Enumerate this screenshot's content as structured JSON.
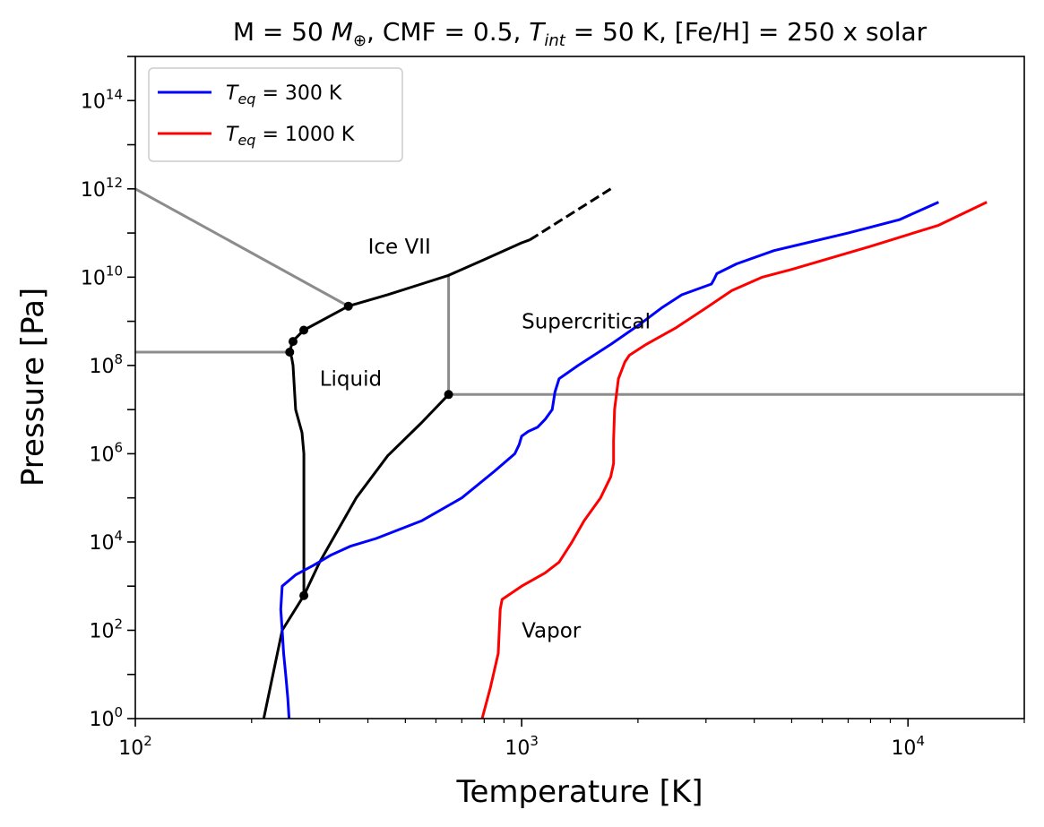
{
  "chart_data": {
    "type": "line",
    "title": {
      "prefix": "M = 50 ",
      "m_sym": "M",
      "m_sub": "⊕",
      "mid1": ", CMF = 0.5, ",
      "t_sym": "T",
      "t_sub": "int",
      "mid2": " = 50 K, [Fe/H] = 250 x solar"
    },
    "xlabel": "Temperature [K]",
    "ylabel": "Pressure [Pa]",
    "xscale": "log",
    "yscale": "log",
    "xlim": [
      100,
      20000
    ],
    "ylim": [
      1,
      1000000000000000.0
    ],
    "grid": false,
    "legend_position": "upper-left",
    "x_ticks": [
      {
        "value": 100,
        "base": "10",
        "exp": "2"
      },
      {
        "value": 1000,
        "base": "10",
        "exp": "3"
      },
      {
        "value": 10000,
        "base": "10",
        "exp": "4"
      }
    ],
    "y_ticks": [
      {
        "value": 1,
        "base": "10",
        "exp": "0"
      },
      {
        "value": 100,
        "base": "10",
        "exp": "2"
      },
      {
        "value": 10000,
        "base": "10",
        "exp": "4"
      },
      {
        "value": 1000000,
        "base": "10",
        "exp": "6"
      },
      {
        "value": 100000000,
        "base": "10",
        "exp": "8"
      },
      {
        "value": 10000000000,
        "base": "10",
        "exp": "10"
      },
      {
        "value": 1000000000000,
        "base": "10",
        "exp": "12"
      },
      {
        "value": 100000000000000,
        "base": "10",
        "exp": "14"
      }
    ],
    "series": [
      {
        "name": "T_eq = 300 K",
        "legend": {
          "sym": "T",
          "sub": "eq",
          "rest": " = 300 K"
        },
        "color": "#0000ff",
        "points": [
          [
            250,
            1
          ],
          [
            248,
            3
          ],
          [
            245,
            10
          ],
          [
            242,
            30
          ],
          [
            240,
            100
          ],
          [
            238,
            300
          ],
          [
            240,
            1000
          ],
          [
            260,
            1800
          ],
          [
            290,
            3000
          ],
          [
            320,
            5000
          ],
          [
            360,
            8000
          ],
          [
            420,
            12000
          ],
          [
            550,
            30000
          ],
          [
            700,
            100000
          ],
          [
            850,
            400000
          ],
          [
            960,
            1000000
          ],
          [
            985,
            1600000
          ],
          [
            1000,
            2500000
          ],
          [
            1040,
            3200000
          ],
          [
            1100,
            4000000
          ],
          [
            1150,
            6000000
          ],
          [
            1200,
            10000000
          ],
          [
            1220,
            25000000
          ],
          [
            1250,
            50000000
          ],
          [
            1400,
            100000000
          ],
          [
            1700,
            300000000
          ],
          [
            2000,
            800000000
          ],
          [
            2300,
            2000000000
          ],
          [
            2600,
            4000000000
          ],
          [
            3100,
            7000000000
          ],
          [
            3150,
            9000000000
          ],
          [
            3200,
            12000000000
          ],
          [
            3600,
            20000000000
          ],
          [
            4500,
            40000000000
          ],
          [
            7000,
            100000000000
          ],
          [
            9500,
            200000000000
          ],
          [
            12000,
            500000000000
          ]
        ]
      },
      {
        "name": "T_eq = 1000 K",
        "legend": {
          "sym": "T",
          "sub": "eq",
          "rest": " = 1000 K"
        },
        "color": "#ff0000",
        "points": [
          [
            790,
            1
          ],
          [
            830,
            5
          ],
          [
            870,
            30
          ],
          [
            880,
            300
          ],
          [
            890,
            500
          ],
          [
            1000,
            1000
          ],
          [
            1150,
            2000
          ],
          [
            1250,
            3500
          ],
          [
            1350,
            10000
          ],
          [
            1450,
            30000
          ],
          [
            1600,
            100000
          ],
          [
            1700,
            300000
          ],
          [
            1730,
            600000
          ],
          [
            1730,
            2000000
          ],
          [
            1740,
            10000000
          ],
          [
            1780,
            50000000
          ],
          [
            1850,
            120000000
          ],
          [
            1900,
            170000000
          ],
          [
            2100,
            300000000
          ],
          [
            2500,
            700000000
          ],
          [
            3000,
            2000000000
          ],
          [
            3500,
            5000000000
          ],
          [
            4200,
            10000000000
          ],
          [
            5000,
            15000000000
          ],
          [
            8000,
            50000000000
          ],
          [
            12000,
            150000000000
          ],
          [
            16000,
            500000000000
          ]
        ]
      }
    ],
    "phase_boundaries": {
      "gray": [
        [
          [
            100,
            1000000000000
          ],
          [
            356,
            2200000000
          ]
        ],
        [
          [
            100,
            200000000
          ],
          [
            251,
            200000000
          ]
        ],
        [
          [
            647,
            22000000
          ],
          [
            647,
            11000000000
          ]
        ],
        [
          [
            647,
            22000000
          ],
          [
            20000,
            22000000
          ]
        ]
      ],
      "black": [
        [
          [
            251,
            200000000
          ],
          [
            254,
            150000000
          ],
          [
            256,
            100000000
          ],
          [
            258,
            30000000
          ],
          [
            260,
            10000000
          ],
          [
            270,
            3000000
          ],
          [
            273.16,
            1000000
          ],
          [
            273.16,
            611
          ]
        ],
        [
          [
            251,
            200000000
          ],
          [
            255,
            350000000
          ],
          [
            273,
            630000000
          ],
          [
            356,
            2200000000
          ],
          [
            450,
            4000000000
          ],
          [
            550,
            7000000000
          ],
          [
            647,
            11000000000
          ],
          [
            800,
            25000000000
          ],
          [
            1000,
            60000000000
          ],
          [
            1050,
            70000000000
          ]
        ],
        [
          [
            215,
            1
          ],
          [
            240,
            100
          ],
          [
            273.16,
            611
          ],
          [
            300,
            3500
          ],
          [
            373,
            100000
          ],
          [
            450,
            900000
          ],
          [
            550,
            5000000
          ],
          [
            647,
            22000000
          ]
        ]
      ],
      "black_dashed": [
        [
          [
            1050,
            70000000000
          ],
          [
            1700,
            1000000000000
          ]
        ]
      ],
      "triple_points": [
        [
          273.16,
          611
        ],
        [
          251,
          200000000
        ],
        [
          256,
          350000000
        ],
        [
          273,
          630000000
        ],
        [
          356,
          2200000000
        ],
        [
          647,
          22000000
        ]
      ]
    },
    "region_labels": [
      {
        "text": "Ice VII",
        "x": 400,
        "y": 50000000000
      },
      {
        "text": "Liquid",
        "x": 300,
        "y": 50000000
      },
      {
        "text": "Supercritical",
        "x": 1000,
        "y": 1000000000
      },
      {
        "text": "Vapor",
        "x": 1000,
        "y": 100
      }
    ]
  }
}
